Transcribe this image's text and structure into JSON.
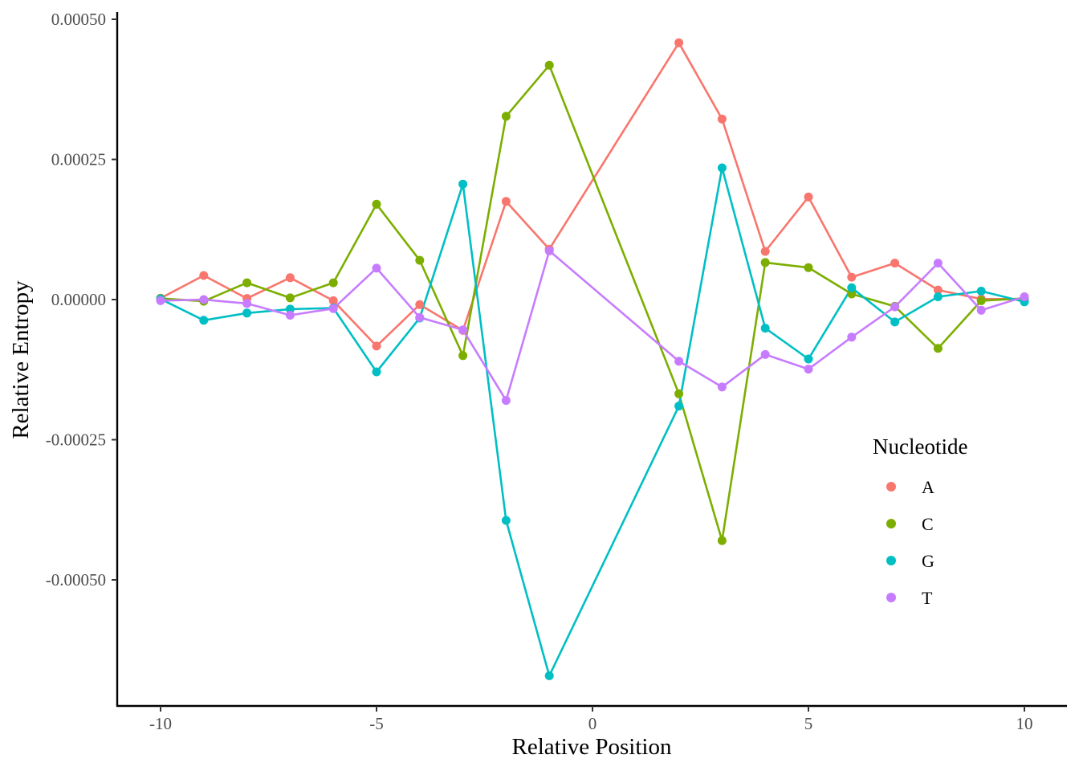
{
  "chart_data": {
    "type": "line",
    "xlabel": "Relative Position",
    "ylabel": "Relative Entropy",
    "xlim": [
      -11,
      11
    ],
    "ylim": [
      -0.00073,
      0.00051
    ],
    "x_ticks": [
      -10,
      -5,
      0,
      5,
      10
    ],
    "x_tick_labels": [
      "-10",
      "-5",
      "0",
      "5",
      "10"
    ],
    "y_ticks": [
      0.0005,
      0.00025,
      0,
      -0.00025,
      -0.0005
    ],
    "y_tick_labels": [
      "0.00050",
      "0.00025",
      "0.00000",
      "-0.00025",
      "-0.00050"
    ],
    "grid": false,
    "legend": {
      "title": "Nucleotide",
      "position": "right"
    },
    "x": [
      -10,
      -9,
      -8,
      -7,
      -6,
      -5,
      -4,
      -3,
      -2,
      -1,
      2,
      3,
      4,
      5,
      6,
      7,
      8,
      9,
      10
    ],
    "series": [
      {
        "name": "A",
        "color": "#F8766D",
        "values": [
          2.5e-06,
          4.3e-05,
          2e-06,
          3.9e-05,
          -2e-06,
          -8.3e-05,
          -9e-06,
          -5.5e-05,
          0.000175,
          9e-05,
          0.000458,
          0.000322,
          8.6e-05,
          0.000183,
          4e-05,
          6.5e-05,
          1.7e-05,
          1e-06,
          1e-06
        ]
      },
      {
        "name": "C",
        "color": "#7CAE00",
        "values": [
          2e-06,
          -3e-06,
          3e-05,
          3e-06,
          3e-05,
          0.00017,
          7e-05,
          -0.0001,
          0.000327,
          0.000418,
          -0.000168,
          -0.00043,
          6.6e-05,
          5.7e-05,
          1e-05,
          -1.2e-05,
          -8.7e-05,
          -2e-06,
          2e-06
        ]
      },
      {
        "name": "G",
        "color": "#00BFC4",
        "values": [
          1e-06,
          -3.7e-05,
          -2.4e-05,
          -1.7e-05,
          -1.5e-05,
          -0.000129,
          -3.3e-05,
          0.000206,
          -0.000394,
          -0.000671,
          -0.00019,
          0.000235,
          -5.1e-05,
          -0.000106,
          2.1e-05,
          -4e-05,
          5e-06,
          1.5e-05,
          -4e-06
        ]
      },
      {
        "name": "T",
        "color": "#C77CFF",
        "values": [
          -2e-06,
          0.0,
          -7e-06,
          -2.8e-05,
          -1.6e-05,
          5.6e-05,
          -3.2e-05,
          -5.4e-05,
          -0.00018,
          8.7e-05,
          -0.00011,
          -0.000156,
          -9.8e-05,
          -0.000124,
          -6.7e-05,
          -1.3e-05,
          6.5e-05,
          -1.9e-05,
          5e-06
        ]
      }
    ]
  }
}
